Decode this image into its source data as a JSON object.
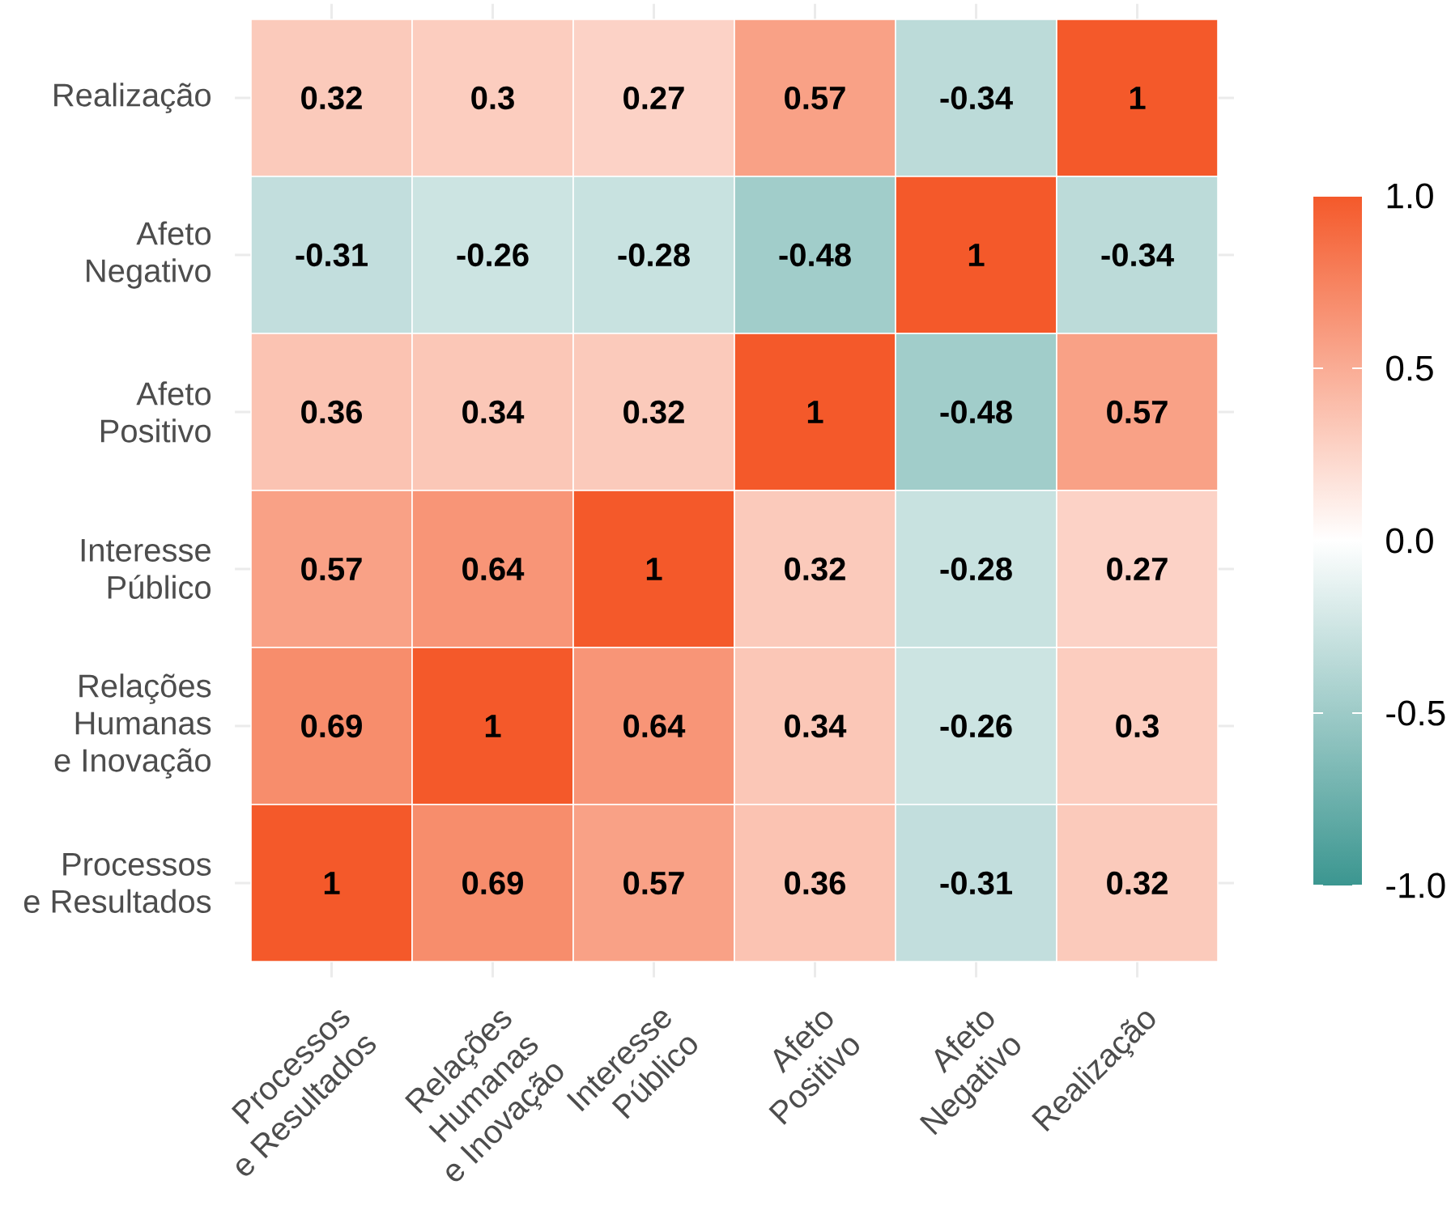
{
  "chart_data": {
    "type": "heatmap",
    "categories": [
      "Processos\ne Resultados",
      "Relações\nHumanas\ne Inovação",
      "Interesse\nPúblico",
      "Afeto\nPositivo",
      "Afeto\nNegativo",
      "Realização"
    ],
    "y_categories": [
      "Realização",
      "Afeto\nNegativo",
      "Afeto\nPositivo",
      "Interesse\nPúblico",
      "Relações\nHumanas\ne Inovação",
      "Processos\ne Resultados"
    ],
    "cells": [
      [
        0.32,
        0.3,
        0.27,
        0.57,
        -0.34,
        1
      ],
      [
        -0.31,
        -0.26,
        -0.28,
        -0.48,
        1,
        -0.34
      ],
      [
        0.36,
        0.34,
        0.32,
        1,
        -0.48,
        0.57
      ],
      [
        0.57,
        0.64,
        1,
        0.32,
        -0.28,
        0.27
      ],
      [
        0.69,
        1,
        0.64,
        0.34,
        -0.26,
        0.3
      ],
      [
        1,
        0.69,
        0.57,
        0.36,
        -0.31,
        0.32
      ]
    ],
    "clim": [
      -1,
      1
    ],
    "cticks": [
      {
        "value": -1,
        "label": "-1.0"
      },
      -0.5,
      {
        "value": 0,
        "label": "0.0"
      },
      0.5,
      {
        "value": 1,
        "label": "1.0"
      }
    ],
    "data_labels": true,
    "grid": true
  }
}
